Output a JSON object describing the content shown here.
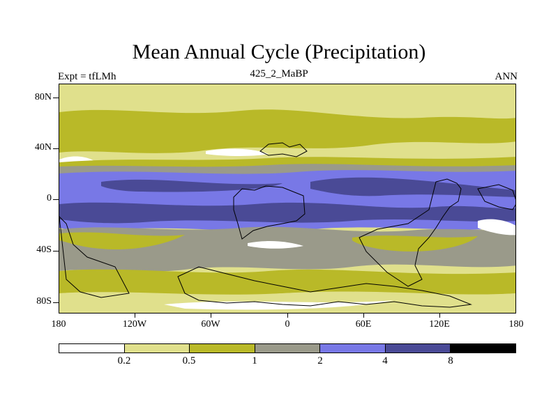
{
  "title": "Mean Annual Cycle (Precipitation)",
  "subtitle_left": "Expt = tfLMh",
  "subtitle_center": "425_2_MaBP",
  "subtitle_right": "ANN",
  "lat_labels": [
    "80N",
    "40N",
    "0",
    "40S",
    "80S"
  ],
  "lon_labels": [
    "180",
    "120W",
    "60W",
    "0",
    "60E",
    "120E",
    "180"
  ],
  "colorbar": {
    "levels": [
      "0.2",
      "0.5",
      "1",
      "2",
      "4",
      "8"
    ],
    "colors": [
      "#ffffff",
      "#e0e08c",
      "#b9b928",
      "#9a9a8a",
      "#7878e6",
      "#4a4a96",
      "#000000"
    ]
  }
}
